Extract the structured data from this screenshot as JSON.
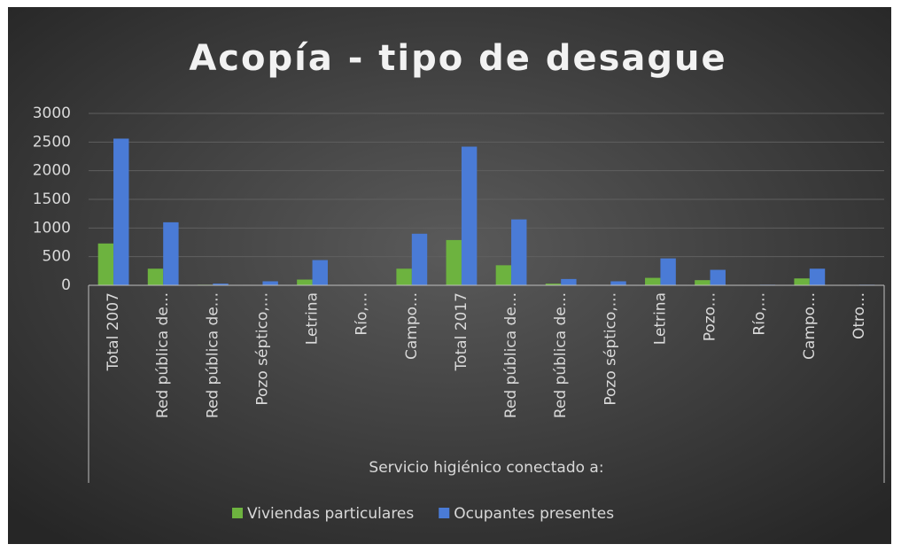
{
  "chart_data": {
    "type": "bar",
    "title": "Acopía - tipo de desague",
    "x_group_label": "Servicio higiénico conectado a:",
    "categories": [
      "Total 2007",
      "Red pública de...",
      "Red pública de...",
      "Pozo séptico,...",
      "Letrina",
      "Río,...",
      "Campo...",
      "Total 2017",
      "Red pública de...",
      "Red pública de...",
      "Pozo séptico,...",
      "Letrina",
      "Pozo...",
      "Río,...",
      "Campo...",
      "Otro..."
    ],
    "series": [
      {
        "name": "Viviendas particulares",
        "color": "#6db33f",
        "values": [
          730,
          290,
          10,
          5,
          100,
          0,
          290,
          790,
          350,
          30,
          5,
          130,
          90,
          0,
          120,
          0
        ]
      },
      {
        "name": "Ocupantes presentes",
        "color": "#4a7bd6",
        "values": [
          2560,
          1100,
          30,
          70,
          440,
          5,
          900,
          2420,
          1150,
          110,
          70,
          470,
          270,
          10,
          290,
          10
        ]
      }
    ],
    "ylim": [
      0,
      3000
    ],
    "yticks": [
      0,
      500,
      1000,
      1500,
      2000,
      2500,
      3000
    ],
    "grid": true,
    "legend": "bottom"
  }
}
